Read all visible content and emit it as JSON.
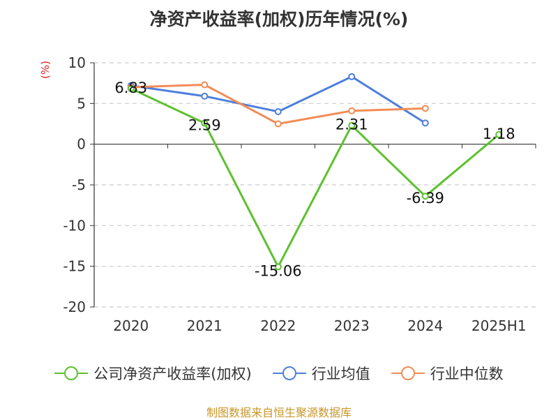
{
  "title": "净资产收益率(加权)历年情况(%)",
  "unit_label": "(%)",
  "source": "制图数据来自恒生聚源数据库",
  "chart_data": {
    "type": "line",
    "categories": [
      "2020",
      "2021",
      "2022",
      "2023",
      "2024",
      "2025H1"
    ],
    "ylim": [
      -20,
      10
    ],
    "yticks": [
      10,
      5,
      0,
      -5,
      -10,
      -15,
      -20
    ],
    "grid": true,
    "legend_position": "bottom",
    "series": [
      {
        "name": "公司净资产收益率(加权)",
        "color": "#5cc12e",
        "values": [
          6.83,
          2.59,
          -15.06,
          2.31,
          -6.39,
          1.18
        ],
        "labels": [
          "6.83",
          "2.59",
          "-15.06",
          "2.31",
          "-6.39",
          "1.18"
        ]
      },
      {
        "name": "行业均值",
        "color": "#4e7fdc",
        "values": [
          7.2,
          5.9,
          4.0,
          8.3,
          2.6,
          null
        ]
      },
      {
        "name": "行业中位数",
        "color": "#f28c55",
        "values": [
          7.0,
          7.3,
          2.5,
          4.1,
          4.4,
          null
        ]
      }
    ]
  }
}
